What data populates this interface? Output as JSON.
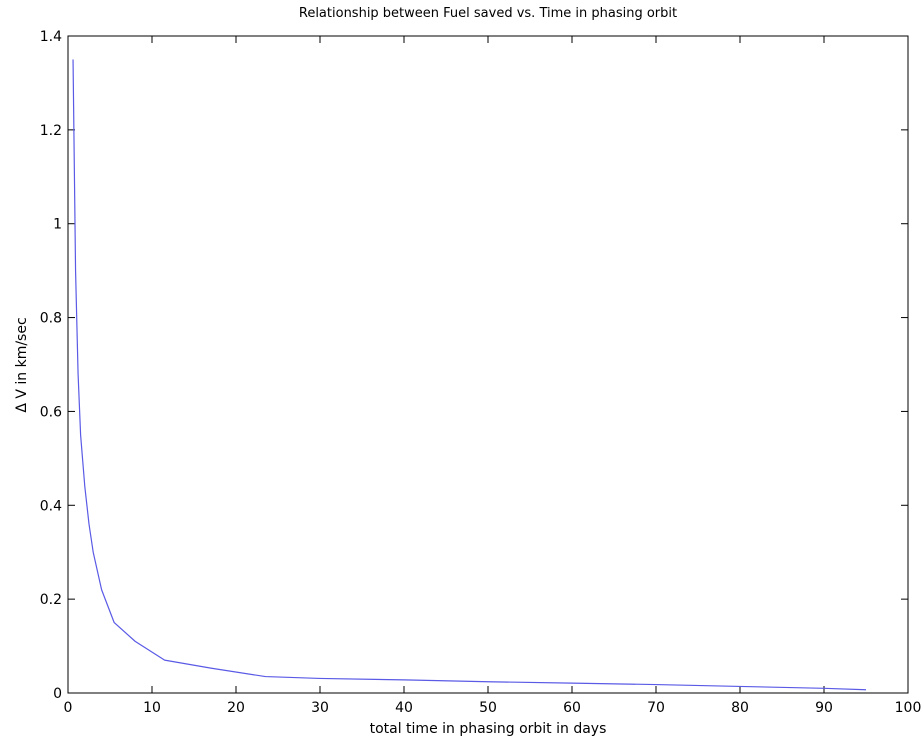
{
  "chart_data": {
    "type": "line",
    "title": "Relationship between Fuel saved vs. Time in phasing orbit",
    "xlabel": "total time in phasing orbit in days",
    "ylabel": "Δ V in km/sec",
    "xlim": [
      0,
      100
    ],
    "ylim": [
      0,
      1.4
    ],
    "xticks": [
      0,
      10,
      20,
      30,
      40,
      50,
      60,
      70,
      80,
      90,
      100
    ],
    "xtick_labels": [
      "0",
      "10",
      "20",
      "30",
      "40",
      "50",
      "60",
      "70",
      "80",
      "90",
      "100"
    ],
    "yticks": [
      0,
      0.2,
      0.4,
      0.6,
      0.8,
      1.0,
      1.2,
      1.4
    ],
    "ytick_labels": [
      "0",
      "0.2",
      "0.4",
      "0.6",
      "0.8",
      "1",
      "1.2",
      "1.4"
    ],
    "grid": false,
    "line_color": "#5a5ae6",
    "series": [
      {
        "x": [
          0.6,
          0.9,
          1.2,
          1.5,
          2.0,
          2.5,
          3.0,
          4.0,
          5.5,
          8.0,
          11.5,
          17.0,
          23.5,
          30.0,
          40.0,
          50.0,
          60.0,
          70.0,
          80.0,
          90.0,
          95.0
        ],
        "y": [
          1.35,
          0.9,
          0.68,
          0.55,
          0.44,
          0.36,
          0.3,
          0.22,
          0.15,
          0.11,
          0.07,
          0.053,
          0.035,
          0.031,
          0.028,
          0.024,
          0.021,
          0.018,
          0.014,
          0.01,
          0.007
        ]
      }
    ]
  }
}
